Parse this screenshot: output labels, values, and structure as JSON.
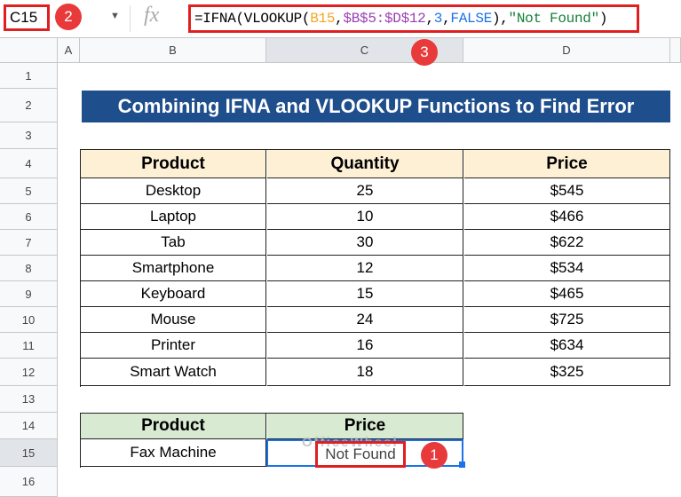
{
  "formula_bar": {
    "cell_ref": "C15",
    "fx": "fx",
    "formula_parts": [
      {
        "t": "=IFNA(VLOOKUP(",
        "c": "#000000"
      },
      {
        "t": "B15",
        "c": "#f5a623"
      },
      {
        "t": ",",
        "c": "#000000"
      },
      {
        "t": "$B$5:$D$12",
        "c": "#9b3fb5"
      },
      {
        "t": ",",
        "c": "#000000"
      },
      {
        "t": "3",
        "c": "#1a73e8"
      },
      {
        "t": ",",
        "c": "#000000"
      },
      {
        "t": "FALSE",
        "c": "#1a73e8"
      },
      {
        "t": "),",
        "c": "#000000"
      },
      {
        "t": "\"Not Found\"",
        "c": "#188038"
      },
      {
        "t": ")",
        "c": "#000000"
      }
    ]
  },
  "badges": [
    "1",
    "2",
    "3"
  ],
  "columns": [
    "A",
    "B",
    "C",
    "D"
  ],
  "rows": [
    "1",
    "2",
    "3",
    "4",
    "5",
    "6",
    "7",
    "8",
    "9",
    "10",
    "11",
    "12",
    "13",
    "14",
    "15",
    "16"
  ],
  "title": "Combining IFNA and VLOOKUP Functions to Find Error",
  "table": {
    "headers": [
      "Product",
      "Quantity",
      "Price"
    ],
    "rows": [
      [
        "Desktop",
        "25",
        "$545"
      ],
      [
        "Laptop",
        "10",
        "$466"
      ],
      [
        "Tab",
        "30",
        "$622"
      ],
      [
        "Smartphone",
        "12",
        "$534"
      ],
      [
        "Keyboard",
        "15",
        "$465"
      ],
      [
        "Mouse",
        "24",
        "$725"
      ],
      [
        "Printer",
        "16",
        "$634"
      ],
      [
        "Smart Watch",
        "18",
        "$325"
      ]
    ]
  },
  "lookup": {
    "headers": [
      "Product",
      "Price"
    ],
    "product": "Fax Machine",
    "result": "Not Found"
  },
  "watermark": "OfficeWheel",
  "colors": {
    "title_bg": "#1f4e8c",
    "header_bg": "#fdf0d5",
    "lookup_header_bg": "#d9ead3",
    "highlight": "#e02020",
    "selection": "#1a73e8"
  }
}
